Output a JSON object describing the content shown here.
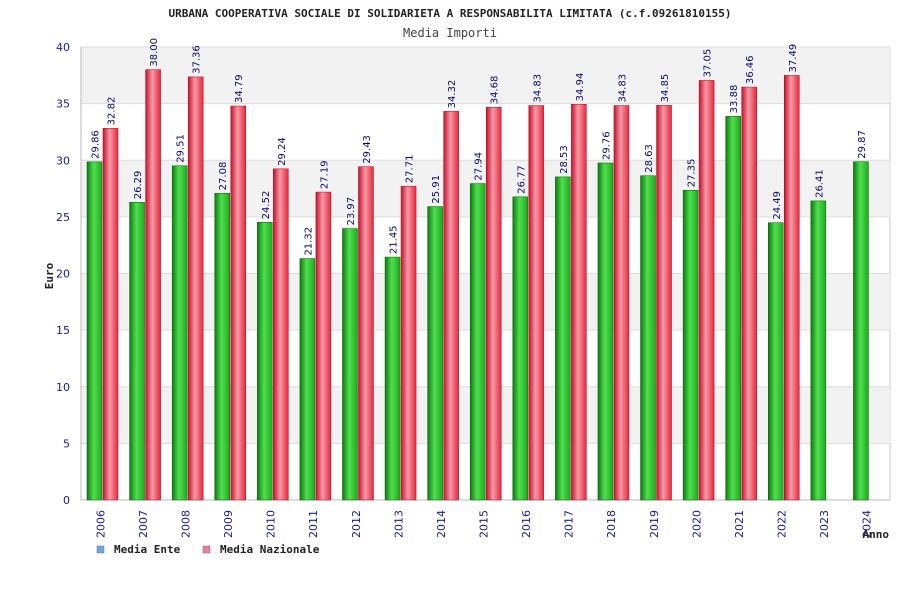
{
  "chart_data": {
    "type": "bar",
    "title": "URBANA COOPERATIVA SOCIALE DI SOLIDARIETA A RESPONSABILITA LIMITATA (c.f.09261810155)",
    "subtitle": "Media Importi",
    "xlabel": "Anno",
    "ylabel": "Euro",
    "ylim": [
      0,
      40
    ],
    "yticks": [
      0,
      5,
      10,
      15,
      20,
      25,
      30,
      35,
      40
    ],
    "grid": true,
    "legend_position": "bottom-left",
    "categories": [
      "2006",
      "2007",
      "2008",
      "2009",
      "2010",
      "2011",
      "2012",
      "2013",
      "2014",
      "2015",
      "2016",
      "2017",
      "2018",
      "2019",
      "2020",
      "2021",
      "2022",
      "2023",
      "2024"
    ],
    "series": [
      {
        "name": "Media Ente",
        "color": "#1fa81f",
        "legend_color": "#6ea6e8",
        "values": [
          29.86,
          26.29,
          29.51,
          27.08,
          24.52,
          21.32,
          23.97,
          21.45,
          25.91,
          27.94,
          26.77,
          28.53,
          29.76,
          28.63,
          27.35,
          33.88,
          24.49,
          26.41,
          29.87
        ],
        "labels": [
          "29.86",
          "26.29",
          "29.51",
          "27.08",
          "24.52",
          "21.32",
          "23.97",
          "21.45",
          "25.91",
          "27.94",
          "26.77",
          "28.53",
          "29.76",
          "28.63",
          "27.35",
          "33.88",
          "24.49",
          "26.41",
          "29.87"
        ]
      },
      {
        "name": "Media Nazionale",
        "color": "#e8283a",
        "legend_color": "#e87aa6",
        "values": [
          32.82,
          38.0,
          37.36,
          34.79,
          29.24,
          27.19,
          29.43,
          27.71,
          34.32,
          34.68,
          34.83,
          34.94,
          34.83,
          34.85,
          37.05,
          36.46,
          37.49,
          null,
          null
        ],
        "labels": [
          "32.82",
          "38.00",
          "37.36",
          "34.79",
          "29.24",
          "27.19",
          "29.43",
          "27.71",
          "34.32",
          "34.68",
          "34.83",
          "34.94",
          "34.83",
          "34.85",
          "37.05",
          "36.46",
          "37.49",
          "",
          ""
        ]
      }
    ]
  }
}
